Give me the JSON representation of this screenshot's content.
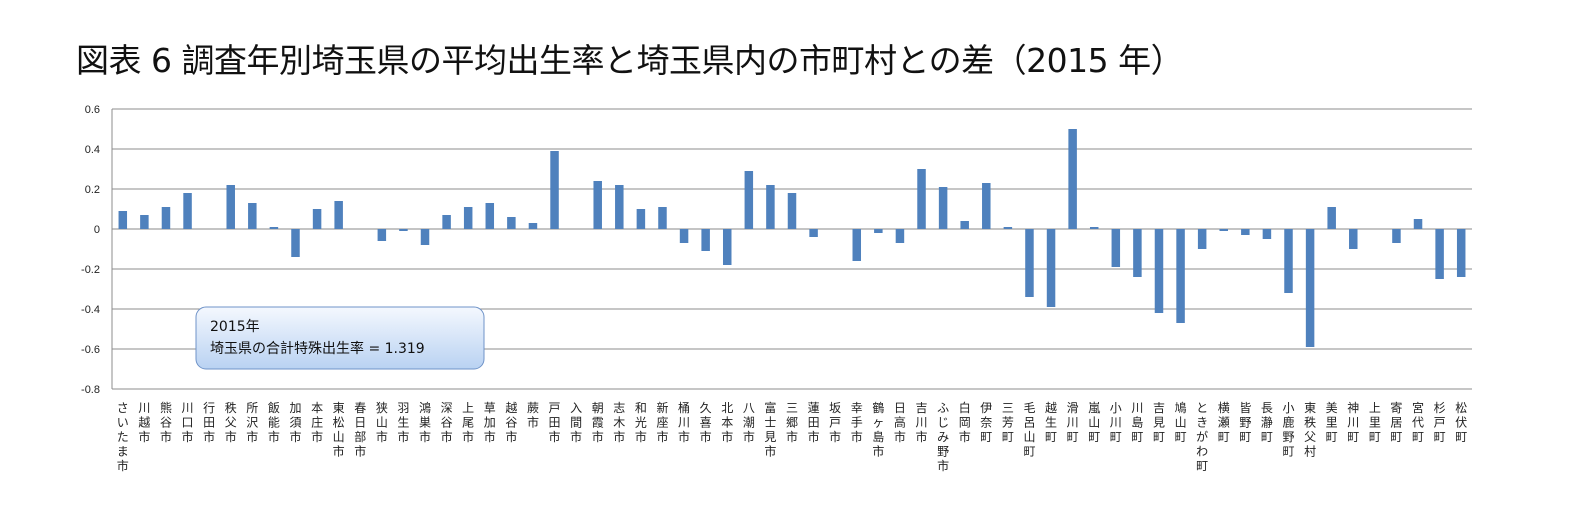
{
  "page": {
    "title": "図表 6 調査年別埼玉県の平均出生率と埼玉県内の市町村との差（2015 年）"
  },
  "chart_data": {
    "type": "bar",
    "title": "図表 6 調査年別埼玉県の平均出生率と埼玉県内の市町村との差（2015 年）",
    "ylim": [
      -0.8,
      0.6
    ],
    "yticks": [
      "0.6",
      "0.4",
      "0.2",
      "0",
      "-0.2",
      "-0.4",
      "-0.6",
      "-0.8"
    ],
    "ytick_values": [
      0.6,
      0.4,
      0.2,
      0,
      -0.2,
      -0.4,
      -0.6,
      -0.8
    ],
    "grid": true,
    "bar_color": "#4f81bd",
    "categories": [
      "さいたま市",
      "川越市",
      "熊谷市",
      "川口市",
      "行田市",
      "秩父市",
      "所沢市",
      "飯能市",
      "加須市",
      "本庄市",
      "東松山市",
      "春日部市",
      "狭山市",
      "羽生市",
      "鴻巣市",
      "深谷市",
      "上尾市",
      "草加市",
      "越谷市",
      "蕨市",
      "戸田市",
      "入間市",
      "朝霞市",
      "志木市",
      "和光市",
      "新座市",
      "桶川市",
      "久喜市",
      "北本市",
      "八潮市",
      "富士見市",
      "三郷市",
      "蓮田市",
      "坂戸市",
      "幸手市",
      "鶴ヶ島市",
      "日高市",
      "吉川市",
      "ふじみ野市",
      "白岡市",
      "伊奈町",
      "三芳町",
      "毛呂山町",
      "越生町",
      "滑川町",
      "嵐山町",
      "小川町",
      "川島町",
      "吉見町",
      "鳩山町",
      "ときがわ町",
      "横瀬町",
      "皆野町",
      "長瀞町",
      "小鹿野町",
      "東秩父村",
      "美里町",
      "神川町",
      "上里町",
      "寄居町",
      "宮代町",
      "杉戸町",
      "松伏町"
    ],
    "values": [
      0.09,
      0.07,
      0.11,
      0.18,
      0,
      0.22,
      0.13,
      0.01,
      -0.14,
      0.1,
      0.14,
      0,
      -0.06,
      -0.01,
      -0.08,
      0.07,
      0.11,
      0.13,
      0.06,
      0.03,
      0.39,
      0,
      0.24,
      0.22,
      0.1,
      0.11,
      -0.07,
      -0.11,
      -0.18,
      0.29,
      0.22,
      0.18,
      -0.04,
      0,
      -0.16,
      -0.02,
      -0.07,
      0.3,
      0.21,
      0.04,
      0.23,
      0.01,
      -0.34,
      -0.39,
      0.5,
      0.01,
      -0.19,
      -0.24,
      -0.42,
      -0.47,
      -0.1,
      -0.01,
      -0.03,
      -0.05,
      -0.32,
      -0.59,
      0.11,
      -0.1,
      0,
      -0.07,
      0.05,
      -0.25,
      -0.24
    ],
    "annotation": {
      "line1": "2015年",
      "line2": "埼玉県の合計特殊出生率 = 1.319"
    }
  }
}
